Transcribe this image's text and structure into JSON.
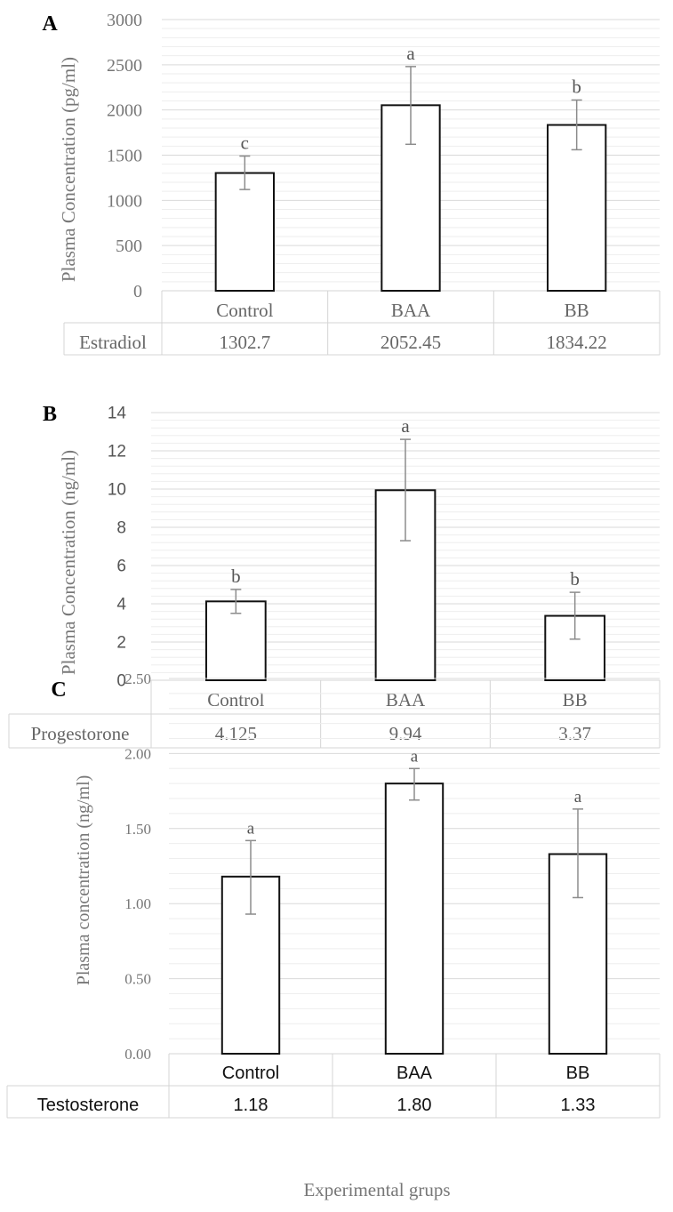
{
  "figure": {
    "xlabel": "Experimental grups"
  },
  "chart_data": [
    {
      "type": "bar",
      "panel_label": "A",
      "ylabel": "Plasma Concentration (pg/ml)",
      "categories": [
        "Control",
        "BAA",
        "BB"
      ],
      "series": [
        {
          "name": "Estradiol",
          "values": [
            1302.7,
            2052.45,
            1834.22
          ],
          "value_labels": [
            "1302.7",
            "2052.45",
            "1834.22"
          ]
        }
      ],
      "error_high": [
        1490,
        2480,
        2110
      ],
      "error_low": [
        1120,
        1620,
        1560
      ],
      "significance": [
        "c",
        "a",
        "b"
      ],
      "ylim": [
        0,
        3000
      ],
      "yticks": [
        0,
        500,
        1000,
        1500,
        2000,
        2500,
        3000
      ],
      "ytick_labels": [
        "0",
        "500",
        "1000",
        "1500",
        "2000",
        "2500",
        "3000"
      ],
      "grid": true,
      "data_table": true
    },
    {
      "type": "bar",
      "panel_label": "B",
      "ylabel": "Plasma Concentration (ng/ml)",
      "categories": [
        "Control",
        "BAA",
        "BB"
      ],
      "series": [
        {
          "name": "Progestorone",
          "values": [
            4.125,
            9.94,
            3.37
          ],
          "value_labels": [
            "4.125",
            "9.94",
            "3.37"
          ]
        }
      ],
      "error_high": [
        4.75,
        12.6,
        4.6
      ],
      "error_low": [
        3.5,
        7.3,
        2.15
      ],
      "significance": [
        "b",
        "a",
        "b"
      ],
      "ylim": [
        0,
        14
      ],
      "yticks": [
        0,
        2,
        4,
        6,
        8,
        10,
        12,
        14
      ],
      "ytick_labels": [
        "0",
        "2",
        "4",
        "6",
        "8",
        "10",
        "12",
        "14"
      ],
      "grid": true,
      "data_table": true
    },
    {
      "type": "bar",
      "panel_label": "C",
      "ylabel": "Plasma concentration (ng/ml)",
      "categories": [
        "Control",
        "BAA",
        "BB"
      ],
      "series": [
        {
          "name": "Testosterone",
          "values": [
            1.18,
            1.8,
            1.33
          ],
          "value_labels": [
            "1.18",
            "1.80",
            "1.33"
          ]
        }
      ],
      "error_high": [
        1.42,
        1.9,
        1.63
      ],
      "error_low": [
        0.93,
        1.69,
        1.04
      ],
      "significance": [
        "a",
        "a",
        "a"
      ],
      "ylim": [
        0,
        2.5
      ],
      "yticks": [
        0,
        0.5,
        1,
        1.5,
        2,
        2.5
      ],
      "ytick_labels": [
        "0.00",
        "0.50",
        "1.00",
        "1.50",
        "2.00",
        "2.50"
      ],
      "grid": true,
      "data_table": true
    }
  ]
}
